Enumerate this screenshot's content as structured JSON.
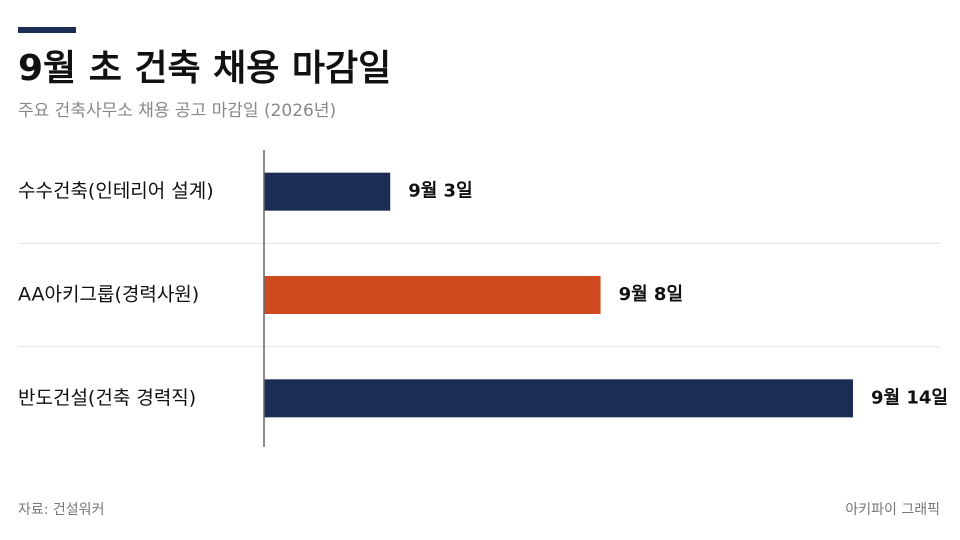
{
  "chart_data": {
    "type": "bar",
    "orientation": "horizontal",
    "title": "9월 초 건축 채용 마감일",
    "subtitle": "주요 건축사무소 채용 공고 마감일 (2026년)",
    "categories": [
      "수수건축(인테리어 설계)",
      "AA아키그룹(경력사원)",
      "반도건설(건축 경력직)"
    ],
    "values": [
      3,
      8,
      14
    ],
    "value_labels": [
      "9월 3일",
      "9월 8일",
      "9월 14일"
    ],
    "colors": [
      "#1b2d55",
      "#d04a20",
      "#1b2d55"
    ],
    "source": "자료: 건설워커",
    "credit": "아키파이 그래픽"
  }
}
